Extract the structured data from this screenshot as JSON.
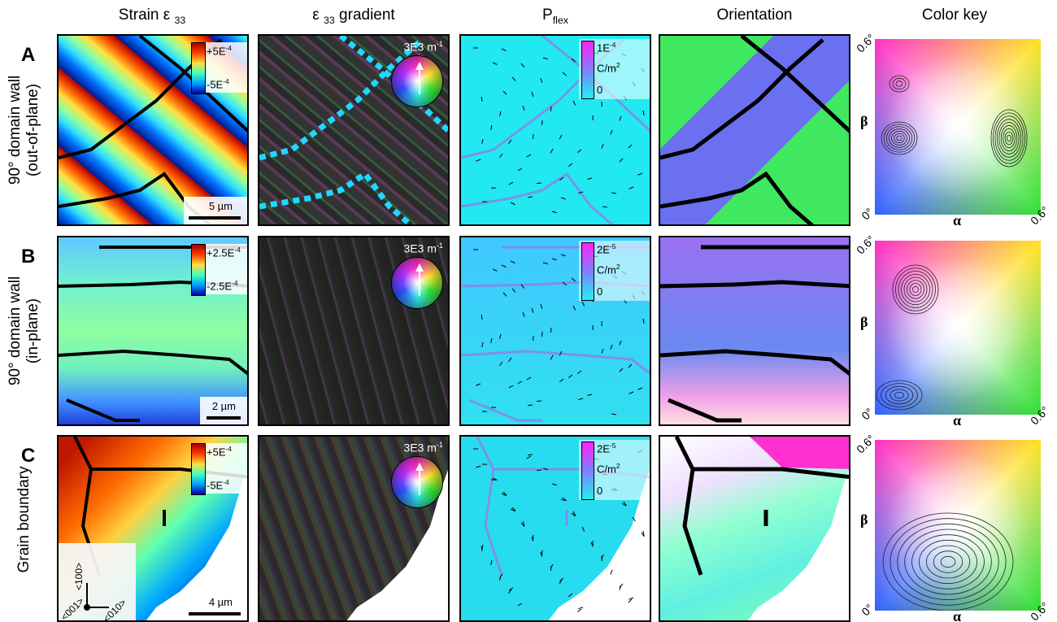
{
  "header": {
    "strain": {
      "base": "Strain ε",
      "sub": "33"
    },
    "gradient": {
      "pre": "ε",
      "sub": "33",
      "post": "gradient"
    },
    "pflex": {
      "base": "P",
      "sub": "flex"
    },
    "orientation": "Orientation",
    "color_key": "Color key"
  },
  "rows": [
    {
      "letter": "A",
      "label": [
        "90° domain wall",
        "(out-of-plane)"
      ],
      "strain_bar": {
        "max": {
          "base": "+5E",
          "exp": "-4"
        },
        "min": {
          "base": "-5E",
          "exp": "-4"
        }
      },
      "gradient_label": {
        "base": "3E3 m",
        "exp": "-1"
      },
      "pflex_bar": {
        "max": {
          "base": "1E",
          "exp": "-4"
        },
        "unit": {
          "base": "C/m",
          "exp": "2"
        },
        "min": "0"
      },
      "scale_bar": "5 µm",
      "key": {
        "y_max": "0.6°",
        "y_label": "β",
        "origin": "0°",
        "x_label": "α",
        "x_max": "0.6°"
      }
    },
    {
      "letter": "B",
      "label": [
        "90° domain wall",
        "(in-plane)"
      ],
      "strain_bar": {
        "max": {
          "base": "+2.5E",
          "exp": "-4"
        },
        "min": {
          "base": "-2.5E",
          "exp": "-4"
        }
      },
      "gradient_label": {
        "base": "3E3 m",
        "exp": "-1"
      },
      "pflex_bar": {
        "max": {
          "base": "2E",
          "exp": "-5"
        },
        "unit": {
          "base": "C/m",
          "exp": "2"
        },
        "min": "0"
      },
      "scale_bar": "2 µm",
      "key": {
        "y_max": "0.6°",
        "y_label": "β",
        "origin": "0°",
        "x_label": "α",
        "x_max": "0.6°"
      }
    },
    {
      "letter": "C",
      "label": [
        "Grain boundary"
      ],
      "strain_bar": {
        "max": {
          "base": "+5E",
          "exp": "-4"
        },
        "min": {
          "base": "-5E",
          "exp": "-4"
        }
      },
      "gradient_label": {
        "base": "3E3 m",
        "exp": "-1"
      },
      "pflex_bar": {
        "max": {
          "base": "2E",
          "exp": "-5"
        },
        "unit": {
          "base": "C/m",
          "exp": "2"
        },
        "min": "0"
      },
      "scale_bar": "4 µm",
      "crystal_axes": [
        "<100>",
        "<001>",
        "<010>"
      ],
      "key": {
        "y_max": "0.6°",
        "y_label": "β",
        "origin": "0°",
        "x_label": "α",
        "x_max": "0.6°"
      }
    }
  ]
}
